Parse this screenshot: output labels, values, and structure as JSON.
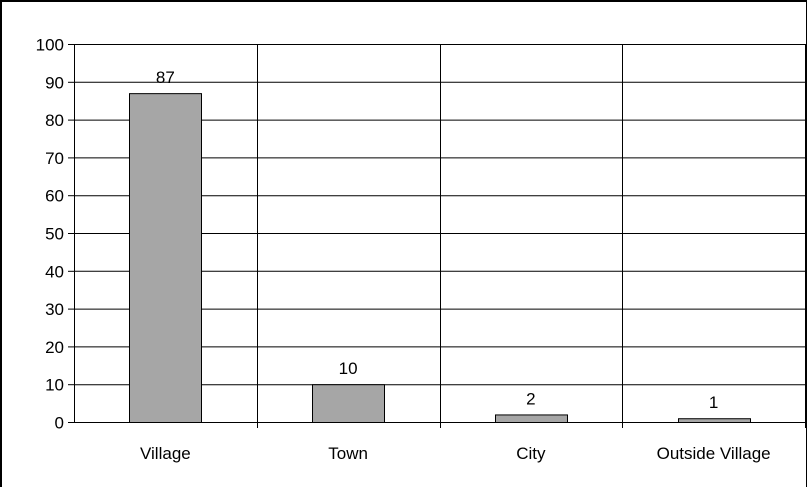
{
  "chart_data": {
    "type": "bar",
    "categories": [
      "Village",
      "Town",
      "City",
      "Outside Village"
    ],
    "values": [
      87,
      10,
      2,
      1
    ],
    "data_labels": [
      "87",
      "10",
      "2",
      "1"
    ],
    "title": "",
    "xlabel": "",
    "ylabel": "",
    "ylim": [
      0,
      100
    ],
    "yticks": [
      0,
      10,
      20,
      30,
      40,
      50,
      60,
      70,
      80,
      90,
      100
    ],
    "grid": true,
    "legend": "none",
    "colors": {
      "bar_fill": "#a6a6a6",
      "bar_stroke": "#000000",
      "grid": "#000000"
    }
  }
}
